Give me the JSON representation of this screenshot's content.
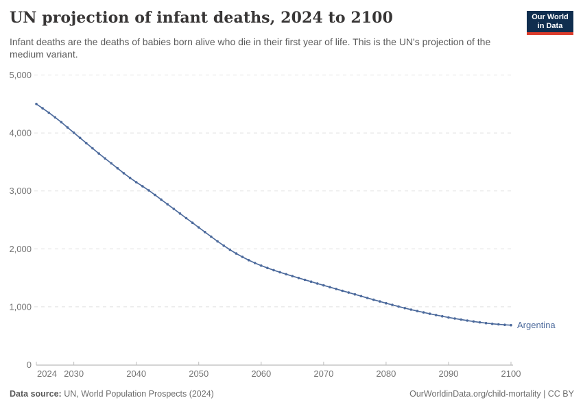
{
  "header": {
    "title": "UN projection of infant deaths, 2024 to 2100",
    "subtitle": "Infant deaths are the deaths of babies born alive who die in their first year of life. This is the UN's projection of the medium variant.",
    "logo": {
      "line1": "Our World",
      "line2": "in Data",
      "bg_color": "#102E4F",
      "accent_color": "#DC3C2C"
    }
  },
  "chart_data": {
    "type": "line",
    "title": "UN projection of infant deaths, 2024 to 2100",
    "xlabel": "",
    "ylabel": "",
    "xlim": [
      2024,
      2101
    ],
    "ylim": [
      0,
      5000
    ],
    "grid": "horizontal-dashed",
    "legend_position": "end-of-line-label",
    "x_ticks": [
      2024,
      2030,
      2040,
      2050,
      2060,
      2070,
      2080,
      2090,
      2100
    ],
    "x_tick_labels": [
      "2024",
      "2030",
      "2040",
      "2050",
      "2060",
      "2070",
      "2080",
      "2090",
      "2100"
    ],
    "y_ticks": [
      0,
      1000,
      2000,
      3000,
      4000,
      5000
    ],
    "y_tick_labels": [
      "0",
      "1,000",
      "2,000",
      "3,000",
      "4,000",
      "5,000"
    ],
    "series": [
      {
        "name": "Argentina",
        "color": "#4C6A9C",
        "marker": "dot",
        "x": [
          2024,
          2025,
          2026,
          2027,
          2028,
          2029,
          2030,
          2031,
          2032,
          2033,
          2034,
          2035,
          2036,
          2037,
          2038,
          2039,
          2040,
          2041,
          2042,
          2043,
          2044,
          2045,
          2046,
          2047,
          2048,
          2049,
          2050,
          2051,
          2052,
          2053,
          2054,
          2055,
          2056,
          2057,
          2058,
          2059,
          2060,
          2061,
          2062,
          2063,
          2064,
          2065,
          2066,
          2067,
          2068,
          2069,
          2070,
          2071,
          2072,
          2073,
          2074,
          2075,
          2076,
          2077,
          2078,
          2079,
          2080,
          2081,
          2082,
          2083,
          2084,
          2085,
          2086,
          2087,
          2088,
          2089,
          2090,
          2091,
          2092,
          2093,
          2094,
          2095,
          2096,
          2097,
          2098,
          2099,
          2100
        ],
        "values": [
          4500,
          4425,
          4350,
          4270,
          4185,
          4095,
          4005,
          3915,
          3825,
          3735,
          3645,
          3560,
          3475,
          3390,
          3305,
          3225,
          3150,
          3080,
          3010,
          2930,
          2850,
          2770,
          2690,
          2610,
          2530,
          2450,
          2370,
          2290,
          2210,
          2130,
          2055,
          1985,
          1920,
          1860,
          1805,
          1755,
          1710,
          1670,
          1632,
          1597,
          1563,
          1530,
          1498,
          1466,
          1434,
          1402,
          1370,
          1339,
          1308,
          1277,
          1246,
          1215,
          1184,
          1153,
          1122,
          1092,
          1062,
          1033,
          1005,
          978,
          952,
          927,
          903,
          880,
          858,
          837,
          817,
          798,
          780,
          763,
          747,
          732,
          719,
          707,
          697,
          689,
          683
        ]
      }
    ],
    "style": {
      "grid_color": "#e0e0e0",
      "axis_color": "#a8a8a8",
      "tick_color": "#bdbdbd",
      "tick_label_color": "#747474"
    }
  },
  "footer": {
    "source_label": "Data source:",
    "source_text": " UN, World Population Prospects (2024)",
    "credit": "OurWorldinData.org/child-mortality | CC BY"
  }
}
